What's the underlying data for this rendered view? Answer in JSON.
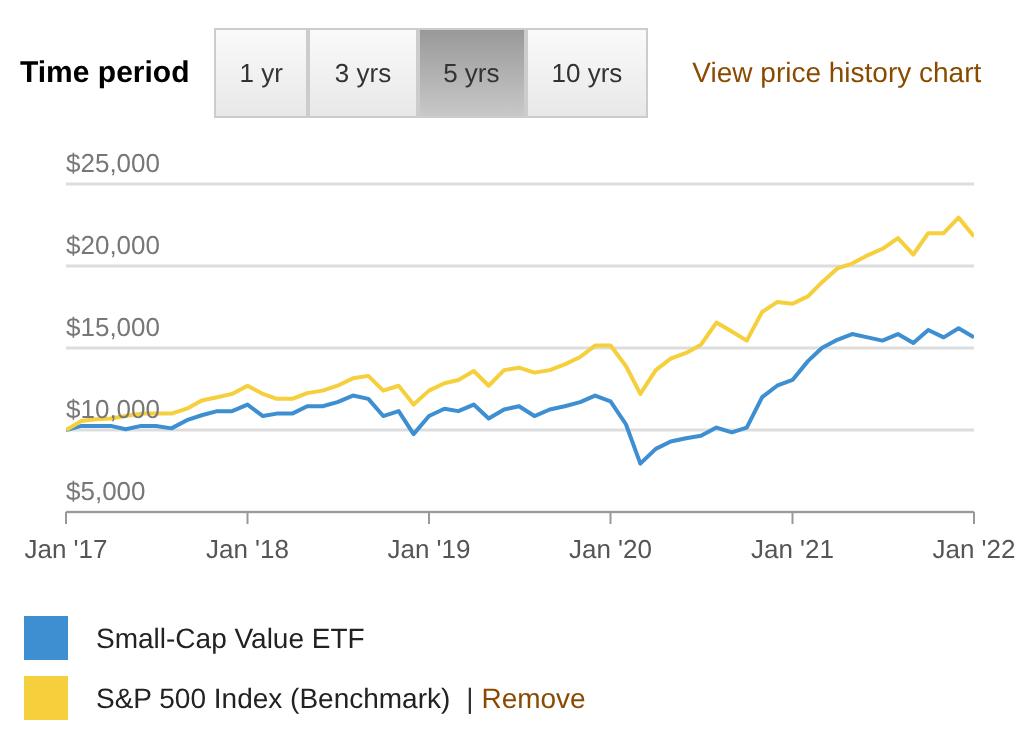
{
  "chart_data": {
    "type": "line",
    "annotations": [
      "Time period",
      "1 yr",
      "3 yrs",
      "5 yrs",
      "10 yrs",
      "View price history chart",
      "| Remove"
    ],
    "x": [
      "2017-01",
      "2017-02",
      "2017-03",
      "2017-04",
      "2017-05",
      "2017-06",
      "2017-07",
      "2017-08",
      "2017-09",
      "2017-10",
      "2017-11",
      "2017-12",
      "2018-01",
      "2018-02",
      "2018-03",
      "2018-04",
      "2018-05",
      "2018-06",
      "2018-07",
      "2018-08",
      "2018-09",
      "2018-10",
      "2018-11",
      "2018-12",
      "2019-01",
      "2019-02",
      "2019-03",
      "2019-04",
      "2019-05",
      "2019-06",
      "2019-07",
      "2019-08",
      "2019-09",
      "2019-10",
      "2019-11",
      "2019-12",
      "2020-01",
      "2020-02",
      "2020-03",
      "2020-04",
      "2020-05",
      "2020-06",
      "2020-07",
      "2020-08",
      "2020-09",
      "2020-10",
      "2020-11",
      "2020-12",
      "2021-01",
      "2021-02",
      "2021-03",
      "2021-04",
      "2021-05",
      "2021-06",
      "2021-07",
      "2021-08",
      "2021-09",
      "2021-10",
      "2021-11",
      "2021-12",
      "2022-01"
    ],
    "series": [
      {
        "name": "Small-Cap Value ETF",
        "color": "#3d8fd1",
        "values": [
          10000,
          10250,
          10250,
          10250,
          10050,
          10250,
          10250,
          10100,
          10600,
          10900,
          11150,
          11150,
          11550,
          10850,
          11000,
          11000,
          11450,
          11450,
          11700,
          12100,
          11900,
          10850,
          11150,
          9750,
          10850,
          11300,
          11150,
          11550,
          10700,
          11250,
          11450,
          10850,
          11250,
          11450,
          11700,
          12100,
          11750,
          10350,
          7950,
          8850,
          9300,
          9500,
          9650,
          10150,
          9850,
          10150,
          12000,
          12700,
          13050,
          14200,
          15000,
          15500,
          15850,
          15650,
          15450,
          15850,
          15300,
          16100,
          15650,
          16200,
          15650
        ]
      },
      {
        "name": "S&P 500 Index  (Benchmark)",
        "color": "#f5cf3c",
        "values": [
          10000,
          10550,
          10650,
          10700,
          10850,
          11000,
          11000,
          11000,
          11300,
          11800,
          12000,
          12200,
          12700,
          12200,
          11900,
          11900,
          12250,
          12400,
          12700,
          13150,
          13300,
          12400,
          12700,
          11550,
          12400,
          12850,
          13050,
          13600,
          12700,
          13650,
          13800,
          13500,
          13650,
          14000,
          14450,
          15150,
          15150,
          13900,
          12200,
          13650,
          14350,
          14700,
          15200,
          16550,
          16000,
          15450,
          17200,
          17800,
          17700,
          18150,
          19000,
          19850,
          20150,
          20650,
          21050,
          21700,
          20700,
          22000,
          22000,
          22950,
          21800
        ]
      }
    ],
    "xlim": [
      "2017-01",
      "2022-01"
    ],
    "xticks": [
      {
        "value": "2017-01",
        "label": "Jan '17"
      },
      {
        "value": "2018-01",
        "label": "Jan '18"
      },
      {
        "value": "2019-01",
        "label": "Jan '19"
      },
      {
        "value": "2020-01",
        "label": "Jan '20"
      },
      {
        "value": "2021-01",
        "label": "Jan '21"
      },
      {
        "value": "2022-01",
        "label": "Jan '22"
      }
    ],
    "ylim": [
      5000,
      25000
    ],
    "yticks": [
      {
        "value": 5000,
        "label": "$5,000"
      },
      {
        "value": 10000,
        "label": "$10,000"
      },
      {
        "value": 15000,
        "label": "$15,000"
      },
      {
        "value": 20000,
        "label": "$20,000"
      },
      {
        "value": 25000,
        "label": "$25,000"
      }
    ],
    "grid": "y",
    "legend": "bottom",
    "marker": "none",
    "line_style": "solid"
  }
}
